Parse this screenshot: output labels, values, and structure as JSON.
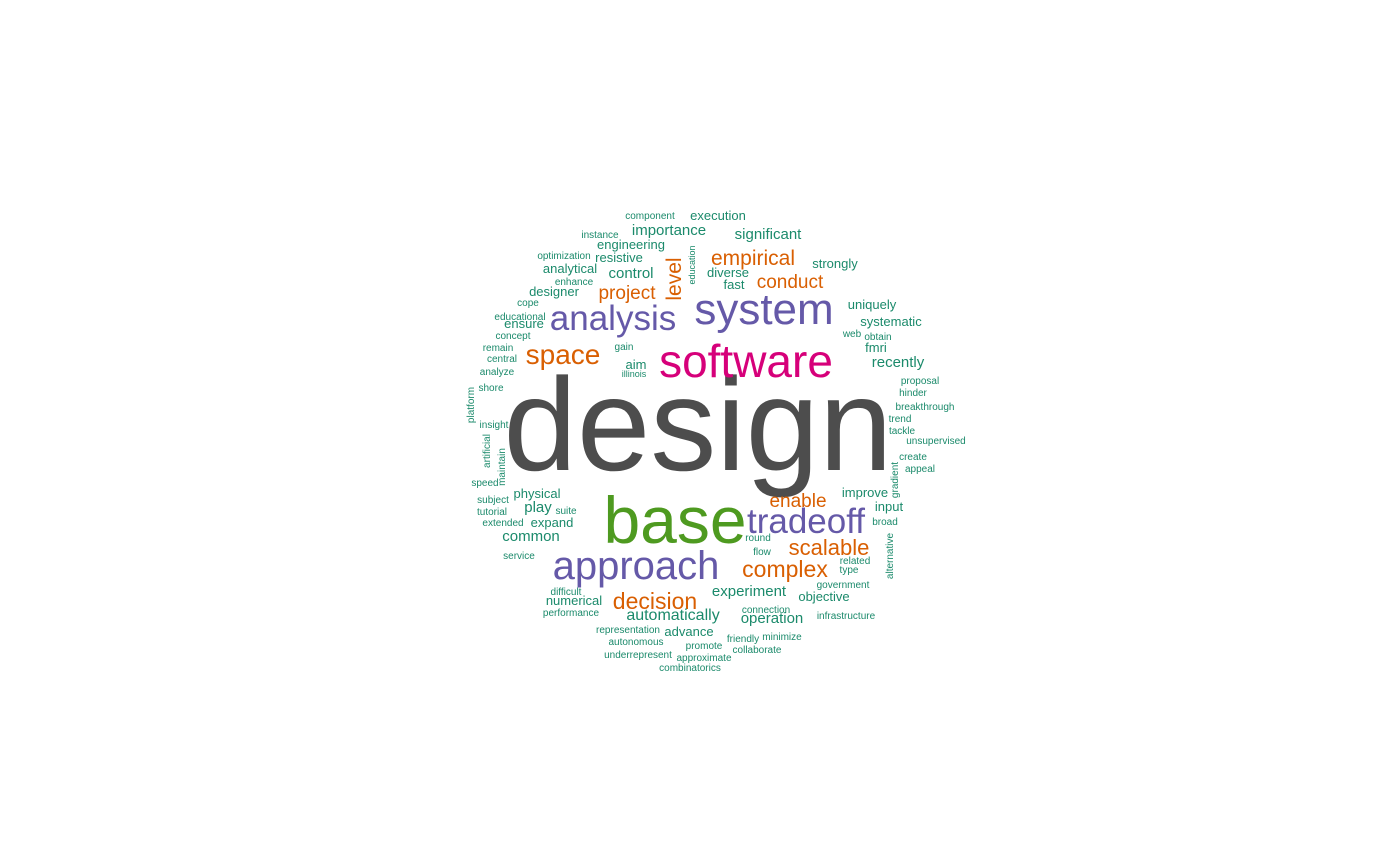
{
  "palette": {
    "dark_gray": "#4D4D4D",
    "green": "#4E9A20",
    "magenta": "#D6007A",
    "purple": "#6559A8",
    "orange": "#D95F02",
    "teal": "#1B8A6B"
  },
  "words": [
    {
      "text": "design",
      "tier": "gray"
    },
    {
      "text": "base",
      "tier": "green"
    },
    {
      "text": "software",
      "tier": "magenta"
    },
    {
      "text": "system",
      "tier": "purple"
    },
    {
      "text": "approach",
      "tier": "purple"
    },
    {
      "text": "analysis",
      "tier": "purple"
    },
    {
      "text": "tradeoff",
      "tier": "purple"
    },
    {
      "text": "space",
      "tier": "orange"
    },
    {
      "text": "complex",
      "tier": "orange"
    },
    {
      "text": "decision",
      "tier": "orange"
    },
    {
      "text": "scalable",
      "tier": "orange"
    },
    {
      "text": "empirical",
      "tier": "orange"
    },
    {
      "text": "enable",
      "tier": "orange"
    },
    {
      "text": "conduct",
      "tier": "orange"
    },
    {
      "text": "project",
      "tier": "orange"
    },
    {
      "text": "level",
      "tier": "orange"
    },
    {
      "text": "significant",
      "tier": "teal"
    },
    {
      "text": "importance",
      "tier": "teal"
    },
    {
      "text": "execution",
      "tier": "teal"
    },
    {
      "text": "component",
      "tier": "teal"
    },
    {
      "text": "instance",
      "tier": "teal"
    },
    {
      "text": "engineering",
      "tier": "teal"
    },
    {
      "text": "optimization",
      "tier": "teal"
    },
    {
      "text": "resistive",
      "tier": "teal"
    },
    {
      "text": "analytical",
      "tier": "teal"
    },
    {
      "text": "control",
      "tier": "teal"
    },
    {
      "text": "education",
      "tier": "teal"
    },
    {
      "text": "diverse",
      "tier": "teal"
    },
    {
      "text": "fast",
      "tier": "teal"
    },
    {
      "text": "strongly",
      "tier": "teal"
    },
    {
      "text": "enhance",
      "tier": "teal"
    },
    {
      "text": "designer",
      "tier": "teal"
    },
    {
      "text": "cope",
      "tier": "teal"
    },
    {
      "text": "educational",
      "tier": "teal"
    },
    {
      "text": "ensure",
      "tier": "teal"
    },
    {
      "text": "concept",
      "tier": "teal"
    },
    {
      "text": "uniquely",
      "tier": "teal"
    },
    {
      "text": "systematic",
      "tier": "teal"
    },
    {
      "text": "web",
      "tier": "teal"
    },
    {
      "text": "obtain",
      "tier": "teal"
    },
    {
      "text": "fmri",
      "tier": "teal"
    },
    {
      "text": "recently",
      "tier": "teal"
    },
    {
      "text": "remain",
      "tier": "teal"
    },
    {
      "text": "gain",
      "tier": "teal"
    },
    {
      "text": "central",
      "tier": "teal"
    },
    {
      "text": "aim",
      "tier": "teal"
    },
    {
      "text": "illinois",
      "tier": "teal"
    },
    {
      "text": "analyze",
      "tier": "teal"
    },
    {
      "text": "proposal",
      "tier": "teal"
    },
    {
      "text": "shore",
      "tier": "teal"
    },
    {
      "text": "hinder",
      "tier": "teal"
    },
    {
      "text": "platform",
      "tier": "teal"
    },
    {
      "text": "breakthrough",
      "tier": "teal"
    },
    {
      "text": "trend",
      "tier": "teal"
    },
    {
      "text": "insight",
      "tier": "teal"
    },
    {
      "text": "tackle",
      "tier": "teal"
    },
    {
      "text": "unsupervised",
      "tier": "teal"
    },
    {
      "text": "artificial",
      "tier": "teal"
    },
    {
      "text": "maintain",
      "tier": "teal"
    },
    {
      "text": "create",
      "tier": "teal"
    },
    {
      "text": "appeal",
      "tier": "teal"
    },
    {
      "text": "gradient",
      "tier": "teal"
    },
    {
      "text": "speed",
      "tier": "teal"
    },
    {
      "text": "physical",
      "tier": "teal"
    },
    {
      "text": "improve",
      "tier": "teal"
    },
    {
      "text": "subject",
      "tier": "teal"
    },
    {
      "text": "play",
      "tier": "teal"
    },
    {
      "text": "suite",
      "tier": "teal"
    },
    {
      "text": "input",
      "tier": "teal"
    },
    {
      "text": "tutorial",
      "tier": "teal"
    },
    {
      "text": "extended",
      "tier": "teal"
    },
    {
      "text": "expand",
      "tier": "teal"
    },
    {
      "text": "broad",
      "tier": "teal"
    },
    {
      "text": "common",
      "tier": "teal"
    },
    {
      "text": "round",
      "tier": "teal"
    },
    {
      "text": "alternative",
      "tier": "teal"
    },
    {
      "text": "service",
      "tier": "teal"
    },
    {
      "text": "flow",
      "tier": "teal"
    },
    {
      "text": "related",
      "tier": "teal"
    },
    {
      "text": "type",
      "tier": "teal"
    },
    {
      "text": "government",
      "tier": "teal"
    },
    {
      "text": "difficult",
      "tier": "teal"
    },
    {
      "text": "experiment",
      "tier": "teal"
    },
    {
      "text": "objective",
      "tier": "teal"
    },
    {
      "text": "numerical",
      "tier": "teal"
    },
    {
      "text": "performance",
      "tier": "teal"
    },
    {
      "text": "connection",
      "tier": "teal"
    },
    {
      "text": "automatically",
      "tier": "teal"
    },
    {
      "text": "operation",
      "tier": "teal"
    },
    {
      "text": "infrastructure",
      "tier": "teal"
    },
    {
      "text": "representation",
      "tier": "teal"
    },
    {
      "text": "advance",
      "tier": "teal"
    },
    {
      "text": "friendly",
      "tier": "teal"
    },
    {
      "text": "minimize",
      "tier": "teal"
    },
    {
      "text": "autonomous",
      "tier": "teal"
    },
    {
      "text": "promote",
      "tier": "teal"
    },
    {
      "text": "collaborate",
      "tier": "teal"
    },
    {
      "text": "underrepresent",
      "tier": "teal"
    },
    {
      "text": "approximate",
      "tier": "teal"
    },
    {
      "text": "combinatorics",
      "tier": "teal"
    }
  ]
}
